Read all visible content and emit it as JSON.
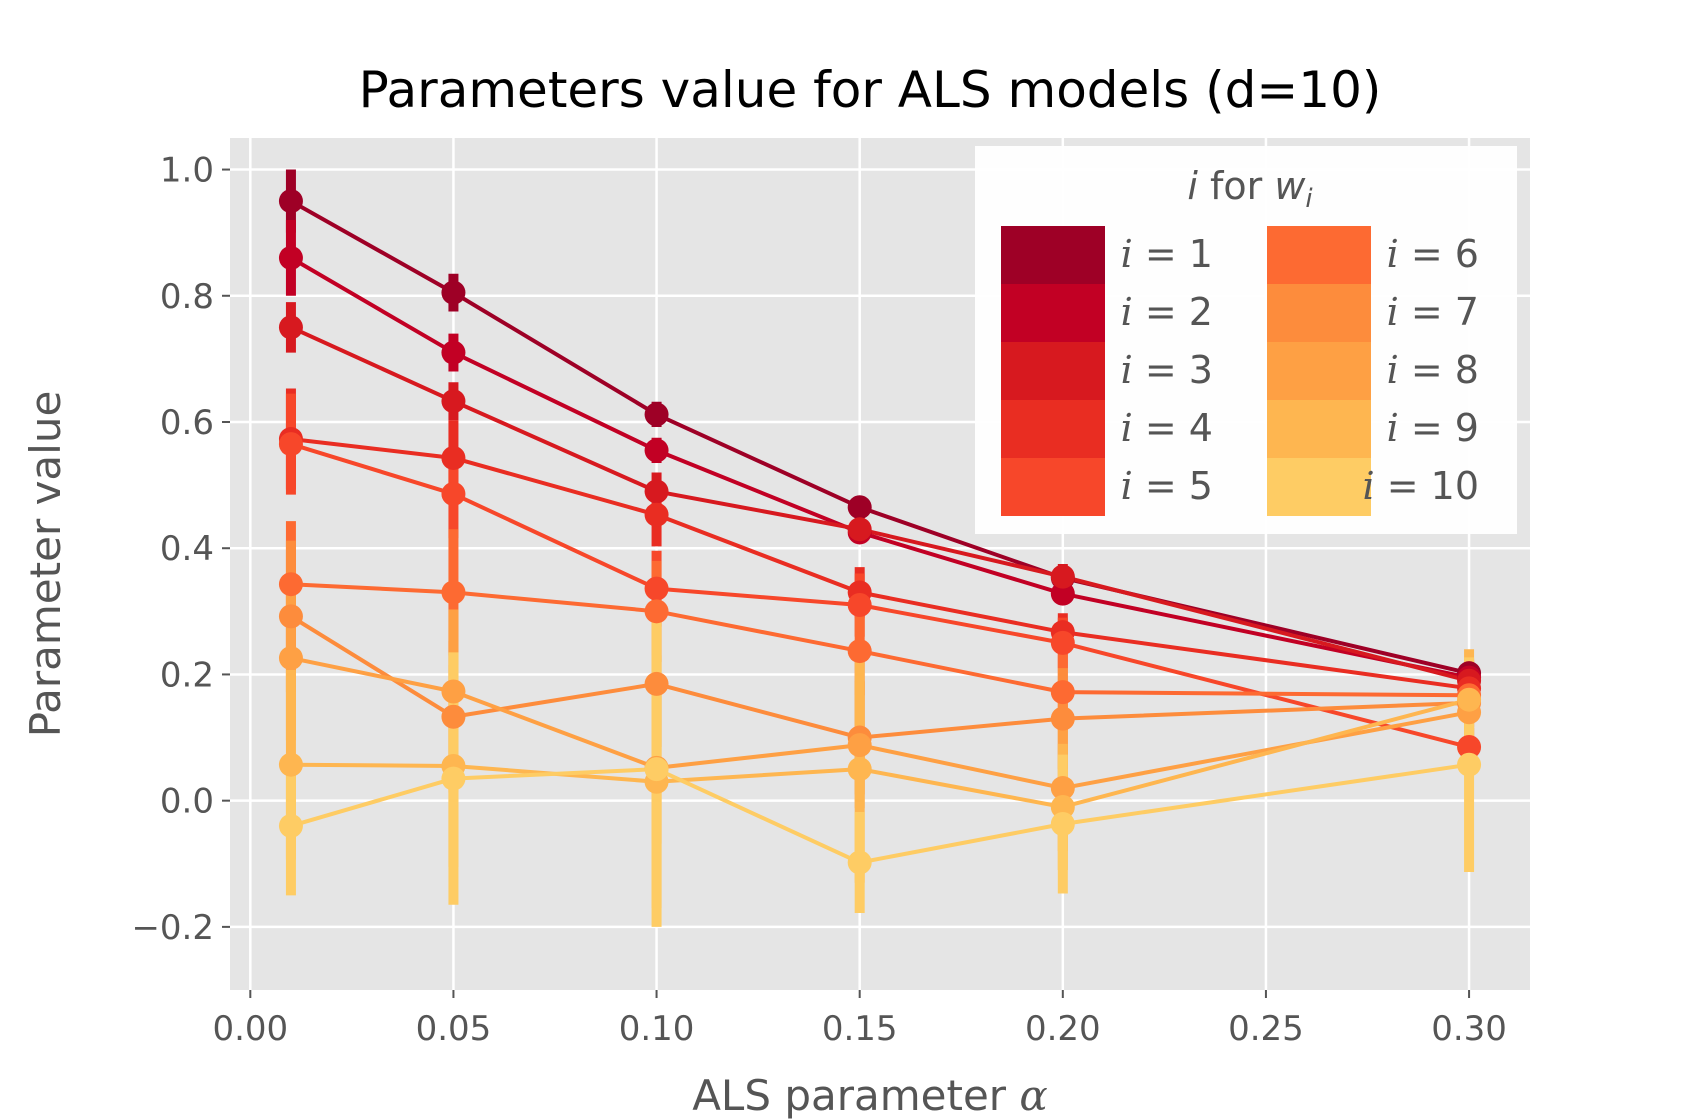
{
  "chart_data": {
    "type": "line",
    "title": "Parameters value for ALS models (d=10)",
    "xlabel_prefix": "ALS parameter ",
    "xlabel_symbol": "α",
    "ylabel": "Parameter value",
    "xlim": [
      -0.005,
      0.315
    ],
    "ylim": [
      -0.3,
      1.05
    ],
    "grid": true,
    "x_ticks": [
      0.0,
      0.05,
      0.1,
      0.15,
      0.2,
      0.25,
      0.3
    ],
    "x_tick_labels": [
      "0.00",
      "0.05",
      "0.10",
      "0.15",
      "0.20",
      "0.25",
      "0.30"
    ],
    "y_ticks": [
      -0.2,
      0.0,
      0.2,
      0.4,
      0.6,
      0.8,
      1.0
    ],
    "y_tick_labels": [
      "−0.2",
      "0.0",
      "0.2",
      "0.4",
      "0.6",
      "0.8",
      "1.0"
    ],
    "x": [
      0.01,
      0.05,
      0.1,
      0.15,
      0.2,
      0.3
    ],
    "legend": {
      "placement": "top-right",
      "title_var": "i",
      "title_mid": " for ",
      "title_w": "w",
      "title_sub": "i",
      "ncols": 2
    },
    "series": [
      {
        "name": "i = 1",
        "label_var": "i",
        "label_eq": " = 1",
        "color": "#9e0026",
        "values": [
          0.95,
          0.805,
          0.612,
          0.465,
          0.353,
          0.202
        ],
        "errors": [
          0.05,
          0.03,
          0.02,
          0.015,
          0.015,
          0.02
        ]
      },
      {
        "name": "i = 2",
        "label_var": "i",
        "label_eq": " = 2",
        "color": "#c20024",
        "values": [
          0.86,
          0.71,
          0.555,
          0.425,
          0.328,
          0.195
        ],
        "errors": [
          0.06,
          0.03,
          0.02,
          0.015,
          0.015,
          0.02
        ]
      },
      {
        "name": "i = 3",
        "label_var": "i",
        "label_eq": " = 3",
        "color": "#d7191f",
        "values": [
          0.75,
          0.633,
          0.49,
          0.43,
          0.355,
          0.19
        ],
        "errors": [
          0.04,
          0.03,
          0.03,
          0.02,
          0.02,
          0.02
        ]
      },
      {
        "name": "i = 4",
        "label_var": "i",
        "label_eq": " = 4",
        "color": "#e92d22",
        "values": [
          0.573,
          0.543,
          0.453,
          0.33,
          0.267,
          0.178
        ],
        "errors": [
          0.08,
          0.06,
          0.05,
          0.04,
          0.03,
          0.03
        ]
      },
      {
        "name": "i = 5",
        "label_var": "i",
        "label_eq": " = 5",
        "color": "#f7472a",
        "values": [
          0.565,
          0.486,
          0.336,
          0.31,
          0.25,
          0.085
        ],
        "errors": [
          0.08,
          0.07,
          0.06,
          0.05,
          0.04,
          0.03
        ]
      },
      {
        "name": "i = 6",
        "label_var": "i",
        "label_eq": " = 6",
        "color": "#fd6a32",
        "values": [
          0.343,
          0.33,
          0.3,
          0.237,
          0.172,
          0.167
        ],
        "errors": [
          0.1,
          0.1,
          0.08,
          0.07,
          0.06,
          0.05
        ]
      },
      {
        "name": "i = 7",
        "label_var": "i",
        "label_eq": " = 7",
        "color": "#fd8c3c",
        "values": [
          0.292,
          0.133,
          0.185,
          0.1,
          0.13,
          0.155
        ],
        "errors": [
          0.12,
          0.12,
          0.1,
          0.09,
          0.08,
          0.07
        ]
      },
      {
        "name": "i = 8",
        "label_var": "i",
        "label_eq": " = 8",
        "color": "#fea044",
        "values": [
          0.226,
          0.173,
          0.052,
          0.088,
          0.02,
          0.14
        ],
        "errors": [
          0.13,
          0.13,
          0.12,
          0.1,
          0.1,
          0.08
        ]
      },
      {
        "name": "i = 9",
        "label_var": "i",
        "label_eq": " = 9",
        "color": "#feb650",
        "values": [
          0.057,
          0.055,
          0.03,
          0.05,
          -0.01,
          0.16
        ],
        "errors": [
          0.15,
          0.16,
          0.2,
          0.18,
          0.1,
          0.08
        ]
      },
      {
        "name": "i = 10",
        "label_var": "i",
        "label_eq": " = 10",
        "color": "#fecc64",
        "values": [
          -0.04,
          0.035,
          0.05,
          -0.098,
          -0.037,
          0.057
        ],
        "errors": [
          0.11,
          0.2,
          0.25,
          0.08,
          0.11,
          0.17
        ]
      }
    ]
  }
}
